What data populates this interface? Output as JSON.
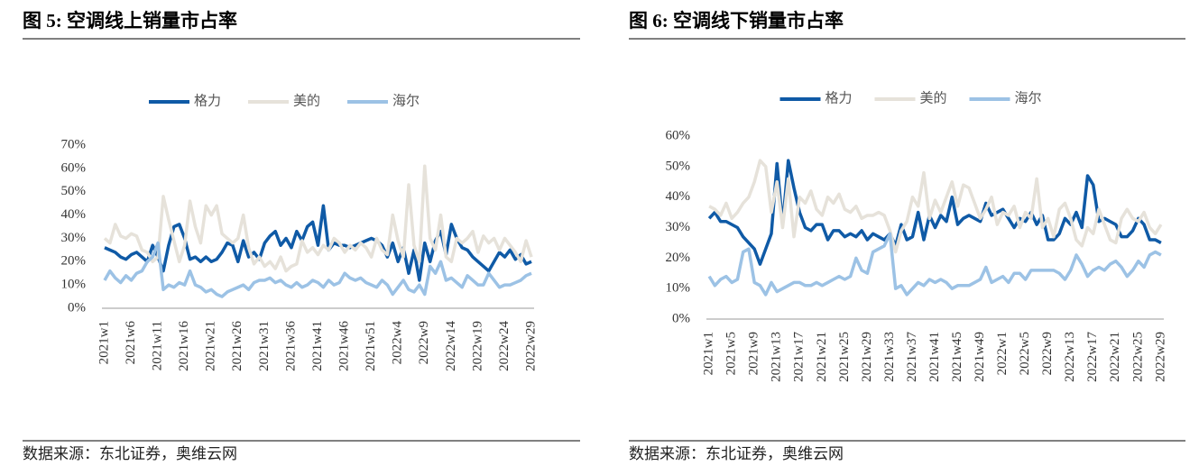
{
  "chart_data": [
    {
      "type": "line",
      "title": "图 5:  空调线上销量市占率",
      "source": "数据来源：东北证券，奥维云网",
      "categories": [
        "2021w1",
        null,
        null,
        null,
        null,
        "2021w6",
        null,
        null,
        null,
        null,
        "2021w11",
        null,
        null,
        null,
        null,
        "2021w16",
        null,
        null,
        null,
        null,
        "2021w21",
        null,
        null,
        null,
        null,
        "2021w26",
        null,
        null,
        null,
        null,
        "2021w31",
        null,
        null,
        null,
        null,
        "2021w36",
        null,
        null,
        null,
        null,
        "2021w41",
        null,
        null,
        null,
        null,
        "2021w46",
        null,
        null,
        null,
        null,
        "2021w51",
        null,
        null,
        null,
        null,
        "2022w4",
        null,
        null,
        null,
        null,
        "2022w9",
        null,
        null,
        null,
        null,
        "2022w14",
        null,
        null,
        null,
        null,
        "2022w19",
        null,
        null,
        null,
        null,
        "2022w24",
        null,
        null,
        null,
        null,
        "2022w29"
      ],
      "ylim": [
        0,
        70
      ],
      "yticks": [
        {
          "value": 0,
          "label": "0%"
        },
        {
          "value": 10,
          "label": "10%"
        },
        {
          "value": 20,
          "label": "20%"
        },
        {
          "value": 30,
          "label": "30%"
        },
        {
          "value": 40,
          "label": "40%"
        },
        {
          "value": 50,
          "label": "50%"
        },
        {
          "value": 60,
          "label": "60%"
        },
        {
          "value": 70,
          "label": "70%"
        }
      ],
      "grid": false,
      "series": [
        {
          "name": "格力",
          "color": "#0f5aa6",
          "values": [
            26,
            25,
            24,
            22,
            21,
            23,
            24,
            22,
            20,
            27,
            22,
            16,
            27,
            35,
            36,
            30,
            21,
            22,
            20,
            22,
            20,
            21,
            24,
            28,
            27,
            20,
            29,
            22,
            24,
            21,
            28,
            31,
            33,
            27,
            30,
            26,
            33,
            29,
            35,
            37,
            27,
            44,
            25,
            28,
            27,
            27,
            26,
            27,
            28,
            29,
            30,
            29,
            27,
            22,
            28,
            20,
            26,
            15,
            25,
            12,
            28,
            20,
            29,
            33,
            23,
            36,
            30,
            26,
            25,
            22,
            20,
            18,
            16,
            20,
            24,
            22,
            25,
            21,
            23,
            19,
            20
          ]
        },
        {
          "name": "美的",
          "color": "#e6e2da",
          "values": [
            30,
            28,
            36,
            31,
            30,
            32,
            31,
            25,
            24,
            20,
            22,
            48,
            38,
            29,
            20,
            27,
            46,
            35,
            28,
            44,
            40,
            44,
            32,
            30,
            28,
            30,
            40,
            26,
            19,
            22,
            18,
            20,
            17,
            22,
            16,
            18,
            19,
            29,
            24,
            26,
            23,
            27,
            25,
            30,
            28,
            24,
            27,
            25,
            28,
            26,
            22,
            30,
            25,
            23,
            40,
            29,
            22,
            53,
            27,
            20,
            61,
            30,
            25,
            40,
            22,
            20,
            30,
            28,
            30,
            33,
            24,
            31,
            28,
            30,
            25,
            30,
            27,
            24,
            20,
            29,
            22
          ]
        },
        {
          "name": "海尔",
          "color": "#9cc2e5",
          "values": [
            12,
            16,
            13,
            11,
            14,
            12,
            15,
            16,
            20,
            22,
            28,
            8,
            10,
            9,
            11,
            10,
            16,
            10,
            9,
            7,
            8,
            6,
            5,
            7,
            8,
            9,
            10,
            8,
            11,
            12,
            12,
            13,
            11,
            12,
            10,
            9,
            11,
            9,
            10,
            12,
            11,
            9,
            12,
            10,
            11,
            15,
            13,
            12,
            13,
            11,
            10,
            9,
            12,
            10,
            6,
            9,
            12,
            8,
            7,
            10,
            6,
            18,
            15,
            20,
            12,
            13,
            11,
            9,
            14,
            12,
            10,
            10,
            15,
            12,
            9,
            10,
            10,
            11,
            12,
            14,
            15
          ]
        }
      ]
    },
    {
      "type": "line",
      "title": "图 6:  空调线下销量市占率",
      "source": "数据来源：东北证券，奥维云网",
      "categories": [
        "2021w1",
        null,
        null,
        null,
        "2021w5",
        null,
        null,
        null,
        "2021w9",
        null,
        null,
        null,
        "2021w13",
        null,
        null,
        null,
        "2021w17",
        null,
        null,
        null,
        "2021w21",
        null,
        null,
        null,
        "2021w25",
        null,
        null,
        null,
        "2021w29",
        null,
        null,
        null,
        "2021w33",
        null,
        null,
        null,
        "2021w37",
        null,
        null,
        null,
        "2021w41",
        null,
        null,
        null,
        "2021w45",
        null,
        null,
        null,
        "2021w49",
        null,
        null,
        null,
        "2022w1",
        null,
        null,
        null,
        "2022w5",
        null,
        null,
        null,
        "2022w9",
        null,
        null,
        null,
        "2022w13",
        null,
        null,
        null,
        "2022w17",
        null,
        null,
        null,
        "2022w21",
        null,
        null,
        null,
        "2022w25",
        null,
        null,
        null,
        "2022w29"
      ],
      "ylim": [
        0,
        60
      ],
      "yticks": [
        {
          "value": 0,
          "label": "0%"
        },
        {
          "value": 10,
          "label": "10%"
        },
        {
          "value": 20,
          "label": "20%"
        },
        {
          "value": 30,
          "label": "30%"
        },
        {
          "value": 40,
          "label": "40%"
        },
        {
          "value": 50,
          "label": "50%"
        },
        {
          "value": 60,
          "label": "60%"
        }
      ],
      "grid": false,
      "series": [
        {
          "name": "格力",
          "color": "#0f5aa6",
          "values": [
            33,
            35,
            32,
            32,
            31,
            30,
            27,
            25,
            23,
            18,
            23,
            28,
            51,
            31,
            52,
            43,
            35,
            30,
            29,
            31,
            31,
            26,
            29,
            29,
            27,
            28,
            27,
            29,
            26,
            28,
            27,
            26,
            28,
            24,
            31,
            26,
            27,
            35,
            26,
            34,
            30,
            34,
            32,
            40,
            31,
            33,
            34,
            33,
            32,
            38,
            34,
            35,
            36,
            33,
            30,
            33,
            32,
            35,
            31,
            34,
            26,
            26,
            28,
            33,
            31,
            35,
            30,
            47,
            44,
            32,
            33,
            32,
            31,
            27,
            27,
            29,
            33,
            31,
            26,
            26,
            25
          ]
        },
        {
          "name": "美的",
          "color": "#e6e2da",
          "values": [
            37,
            36,
            34,
            38,
            33,
            35,
            38,
            40,
            45,
            52,
            50,
            35,
            45,
            30,
            46,
            27,
            40,
            38,
            42,
            36,
            34,
            40,
            38,
            41,
            36,
            35,
            37,
            33,
            34,
            34,
            35,
            34,
            29,
            22,
            29,
            32,
            40,
            37,
            48,
            33,
            39,
            35,
            40,
            45,
            37,
            44,
            43,
            38,
            33,
            36,
            40,
            31,
            35,
            34,
            37,
            30,
            35,
            33,
            46,
            30,
            33,
            27,
            36,
            38,
            33,
            26,
            24,
            30,
            28,
            36,
            31,
            26,
            25,
            33,
            36,
            33,
            32,
            35,
            30,
            28,
            31
          ]
        },
        {
          "name": "海尔",
          "color": "#9cc2e5",
          "values": [
            14,
            11,
            13,
            14,
            12,
            13,
            22,
            23,
            12,
            11,
            8,
            12,
            9,
            10,
            11,
            12,
            12,
            11,
            11,
            12,
            11,
            12,
            13,
            14,
            13,
            14,
            20,
            16,
            15,
            22,
            23,
            24,
            28,
            10,
            11,
            8,
            10,
            12,
            11,
            13,
            12,
            13,
            12,
            10,
            11,
            11,
            11,
            12,
            13,
            17,
            12,
            13,
            14,
            12,
            15,
            15,
            13,
            16,
            16,
            16,
            16,
            16,
            15,
            13,
            16,
            21,
            18,
            14,
            16,
            17,
            16,
            18,
            19,
            17,
            14,
            16,
            19,
            17,
            21,
            22,
            21
          ]
        }
      ]
    }
  ]
}
